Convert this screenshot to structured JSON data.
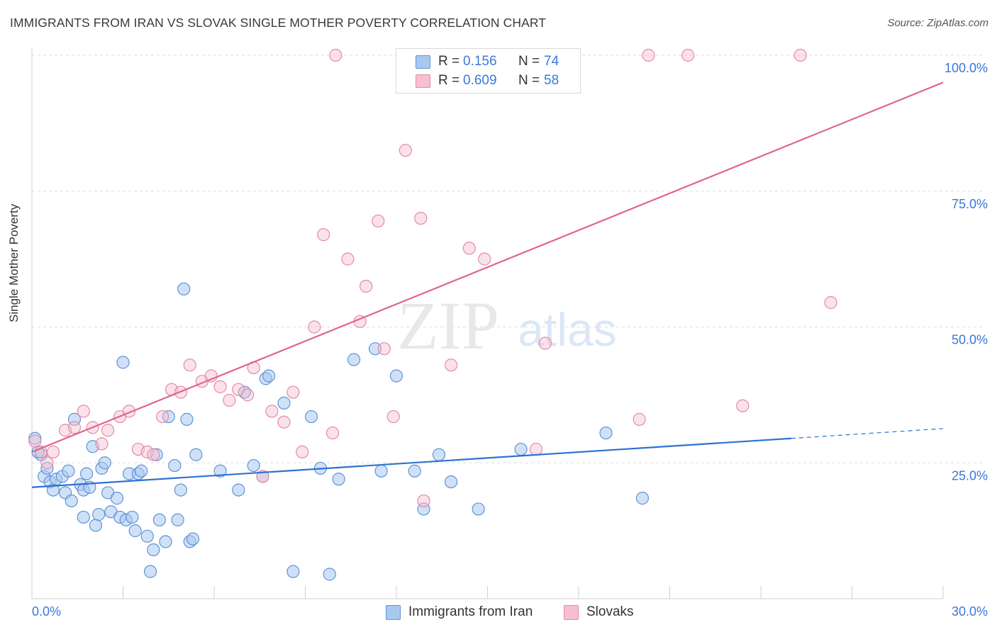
{
  "header": {
    "title": "IMMIGRANTS FROM IRAN VS SLOVAK SINGLE MOTHER POVERTY CORRELATION CHART",
    "source": "Source: ZipAtlas.com"
  },
  "legend": {
    "rows": [
      {
        "r_label": "R =",
        "r_value": "0.156",
        "n_label": "N =",
        "n_value": "74"
      },
      {
        "r_label": "R =",
        "r_value": "0.609",
        "n_label": "N =",
        "n_value": "58"
      }
    ]
  },
  "bottom_legend": [
    "Immigrants from Iran",
    "Slovaks"
  ],
  "watermark": {
    "zip": "ZIP",
    "atlas": "atlas"
  },
  "colors": {
    "blue_fill": "#a9c8f0",
    "blue_stroke": "#5f93d6",
    "blue_line": "#2e72d2",
    "pink_fill": "#f7bfd0",
    "pink_stroke": "#e48aa6",
    "pink_line": "#e0658f",
    "axis_label": "#3b78d8",
    "grid": "#dedede"
  },
  "chart_data": {
    "type": "scatter",
    "title": "IMMIGRANTS FROM IRAN VS SLOVAK SINGLE MOTHER POVERTY CORRELATION CHART",
    "xlabel": "",
    "ylabel": "Single Mother Poverty",
    "xlim": [
      0,
      30
    ],
    "ylim": [
      0,
      100
    ],
    "x_tick_labels": [
      "0.0%",
      "30.0%"
    ],
    "y_tick_labels": [
      "25.0%",
      "50.0%",
      "75.0%",
      "100.0%"
    ],
    "y_ticks": [
      25,
      50,
      75,
      100
    ],
    "grid": true,
    "legend_position": "top-center",
    "series": [
      {
        "name": "Immigrants from Iran",
        "color": "#a9c8f0",
        "trend": {
          "x0": 0,
          "y0": 20.5,
          "x1": 25.0,
          "y1": 29.5,
          "dash_to": 30.0
        },
        "points": [
          [
            0.1,
            29.5
          ],
          [
            0.3,
            26.5
          ],
          [
            0.4,
            22.5
          ],
          [
            0.5,
            24.0
          ],
          [
            0.6,
            21.5
          ],
          [
            0.7,
            20.0
          ],
          [
            0.8,
            22.0
          ],
          [
            1.0,
            22.5
          ],
          [
            1.1,
            19.5
          ],
          [
            1.2,
            23.5
          ],
          [
            1.3,
            18.0
          ],
          [
            1.4,
            33.0
          ],
          [
            1.6,
            21.0
          ],
          [
            1.7,
            20.0
          ],
          [
            1.7,
            15.0
          ],
          [
            1.8,
            23.0
          ],
          [
            1.9,
            20.5
          ],
          [
            2.0,
            28.0
          ],
          [
            2.1,
            13.5
          ],
          [
            2.2,
            15.5
          ],
          [
            2.3,
            24.0
          ],
          [
            2.4,
            25.0
          ],
          [
            2.5,
            19.5
          ],
          [
            2.6,
            16.0
          ],
          [
            2.8,
            18.5
          ],
          [
            2.9,
            15.0
          ],
          [
            3.0,
            43.5
          ],
          [
            3.1,
            14.5
          ],
          [
            3.2,
            23.0
          ],
          [
            3.3,
            15.0
          ],
          [
            3.4,
            12.5
          ],
          [
            3.5,
            23.0
          ],
          [
            3.6,
            23.5
          ],
          [
            3.8,
            11.5
          ],
          [
            3.9,
            5.0
          ],
          [
            4.0,
            9.0
          ],
          [
            4.1,
            26.5
          ],
          [
            4.2,
            14.5
          ],
          [
            4.4,
            10.5
          ],
          [
            4.5,
            33.5
          ],
          [
            4.7,
            24.5
          ],
          [
            4.8,
            14.5
          ],
          [
            4.9,
            20.0
          ],
          [
            5.0,
            57.0
          ],
          [
            5.1,
            33.0
          ],
          [
            5.2,
            10.5
          ],
          [
            5.3,
            11.0
          ],
          [
            5.4,
            26.5
          ],
          [
            6.2,
            23.5
          ],
          [
            6.8,
            20.0
          ],
          [
            7.0,
            38.0
          ],
          [
            7.3,
            24.5
          ],
          [
            7.6,
            22.5
          ],
          [
            7.7,
            40.5
          ],
          [
            7.8,
            41.0
          ],
          [
            8.3,
            36.0
          ],
          [
            8.6,
            5.0
          ],
          [
            9.2,
            33.5
          ],
          [
            9.5,
            24.0
          ],
          [
            9.8,
            4.5
          ],
          [
            10.1,
            22.0
          ],
          [
            10.6,
            44.0
          ],
          [
            11.3,
            46.0
          ],
          [
            11.5,
            23.5
          ],
          [
            12.0,
            41.0
          ],
          [
            12.6,
            23.5
          ],
          [
            12.9,
            16.5
          ],
          [
            13.4,
            26.5
          ],
          [
            13.8,
            21.5
          ],
          [
            14.7,
            16.5
          ],
          [
            16.1,
            27.5
          ],
          [
            18.9,
            30.5
          ],
          [
            20.1,
            18.5
          ],
          [
            0.2,
            27.0
          ]
        ]
      },
      {
        "name": "Slovaks",
        "color": "#f7bfd0",
        "trend": {
          "x0": 0,
          "y0": 27.0,
          "x1": 30.0,
          "y1": 95.0
        },
        "points": [
          [
            0.1,
            29.0
          ],
          [
            0.3,
            27.0
          ],
          [
            0.5,
            25.0
          ],
          [
            0.7,
            27.0
          ],
          [
            1.1,
            31.0
          ],
          [
            1.4,
            31.5
          ],
          [
            1.7,
            34.5
          ],
          [
            2.0,
            31.5
          ],
          [
            2.3,
            28.5
          ],
          [
            2.5,
            31.0
          ],
          [
            2.9,
            33.5
          ],
          [
            3.2,
            34.5
          ],
          [
            3.5,
            27.5
          ],
          [
            3.8,
            27.0
          ],
          [
            4.0,
            26.5
          ],
          [
            4.3,
            33.5
          ],
          [
            4.6,
            38.5
          ],
          [
            4.9,
            38.0
          ],
          [
            5.2,
            43.0
          ],
          [
            5.6,
            40.0
          ],
          [
            5.9,
            41.0
          ],
          [
            6.2,
            39.0
          ],
          [
            6.5,
            36.5
          ],
          [
            6.8,
            38.5
          ],
          [
            7.1,
            37.5
          ],
          [
            7.3,
            42.5
          ],
          [
            7.6,
            22.5
          ],
          [
            7.9,
            34.5
          ],
          [
            8.3,
            32.5
          ],
          [
            8.6,
            38.0
          ],
          [
            8.9,
            27.0
          ],
          [
            9.3,
            50.0
          ],
          [
            9.6,
            67.0
          ],
          [
            9.9,
            30.5
          ],
          [
            10.0,
            100.0
          ],
          [
            10.4,
            62.5
          ],
          [
            10.8,
            51.0
          ],
          [
            11.0,
            57.5
          ],
          [
            11.4,
            69.5
          ],
          [
            11.6,
            46.0
          ],
          [
            11.9,
            33.5
          ],
          [
            12.3,
            82.5
          ],
          [
            12.9,
            18.0
          ],
          [
            12.8,
            70.0
          ],
          [
            13.8,
            43.0
          ],
          [
            14.4,
            64.5
          ],
          [
            14.9,
            62.5
          ],
          [
            15.2,
            100.0
          ],
          [
            16.1,
            100.0
          ],
          [
            16.6,
            27.5
          ],
          [
            16.9,
            47.0
          ],
          [
            17.7,
            100.0
          ],
          [
            20.0,
            33.0
          ],
          [
            20.3,
            100.0
          ],
          [
            21.6,
            100.0
          ],
          [
            23.4,
            35.5
          ],
          [
            25.3,
            100.0
          ],
          [
            26.3,
            54.5
          ]
        ]
      }
    ]
  }
}
